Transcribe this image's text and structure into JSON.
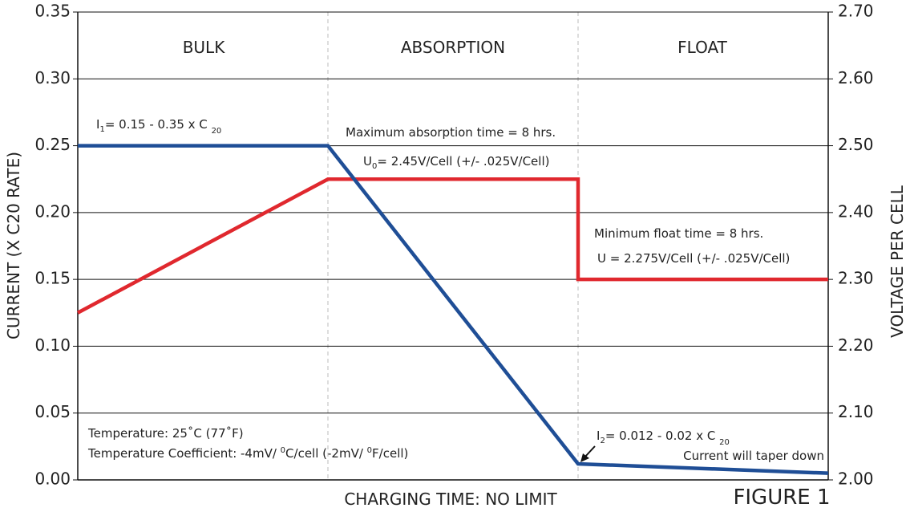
{
  "chart_data": {
    "type": "line",
    "ylabel": "CURRENT (X C20 RATE)",
    "y2label": "VOLTAGE PER CELL",
    "xlabel": "CHARGING TIME: NO LIMIT",
    "figure_label": "FIGURE 1",
    "phases": [
      "BULK",
      "ABSORPTION",
      "FLOAT"
    ],
    "phase_edges": [
      0,
      1,
      2,
      3
    ],
    "xlim": [
      0,
      3
    ],
    "ylim": [
      0,
      0.35
    ],
    "yticks": [
      {
        "value": 0,
        "label": "0.00"
      },
      0.05,
      {
        "value": 0.1,
        "label": "0.10"
      },
      0.15,
      {
        "value": 0.2,
        "label": "0.20"
      },
      0.25,
      {
        "value": 0.3,
        "label": "0.30"
      },
      0.35
    ],
    "y2lim": [
      2.0,
      2.7
    ],
    "y2ticks": [
      {
        "value": 2.0,
        "label": "2.00"
      },
      {
        "value": 2.1,
        "label": "2.10"
      },
      {
        "value": 2.2,
        "label": "2.20"
      },
      {
        "value": 2.3,
        "label": "2.30"
      },
      {
        "value": 2.4,
        "label": "2.40"
      },
      {
        "value": 2.5,
        "label": "2.50"
      },
      {
        "value": 2.6,
        "label": "2.60"
      },
      {
        "value": 2.7,
        "label": "2.70"
      }
    ],
    "grid": true,
    "series": [
      {
        "color": "#1f4e96",
        "x": [
          0,
          1,
          2,
          3
        ],
        "values": [
          0.25,
          0.25,
          0.012,
          0.005
        ]
      },
      {
        "color": "#e0282e",
        "axis": "y2",
        "x": [
          0,
          1,
          2,
          2,
          3
        ],
        "values": [
          2.25,
          2.45,
          2.45,
          2.3,
          2.3
        ]
      }
    ],
    "annotations": [
      [
        "I",
        "1",
        "= 0.15 - 0.35 x C ",
        "20"
      ],
      [
        "Maximum absorption time = 8 hrs."
      ],
      [
        "U",
        "0",
        "= 2.45V/Cell (+/- .025V/Cell)"
      ],
      [
        "Minimum float time = 8 hrs."
      ],
      [
        "U = 2.275V/Cell (+/- .025V/Cell)"
      ],
      [
        "Temperature: 25˚C (77˚F)"
      ],
      [
        "Temperature Coefficient: -4mV/ ",
        "0",
        "C/cell (-2mV/ ",
        "0",
        "F/cell)"
      ],
      [
        "I",
        "2",
        "= 0.012 - 0.02 x C ",
        "20"
      ],
      [
        "Current will taper down"
      ]
    ]
  }
}
